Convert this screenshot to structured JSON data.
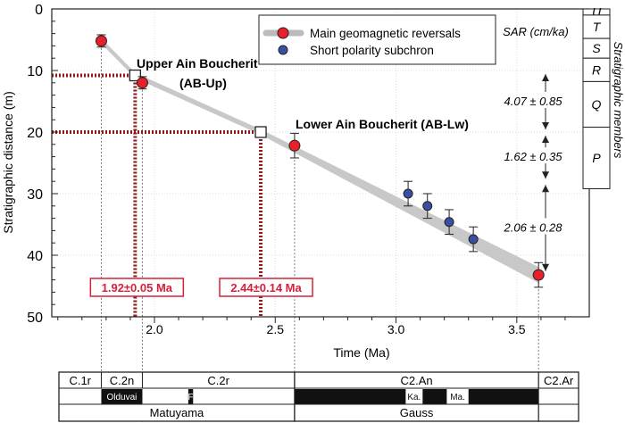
{
  "chart_data": {
    "type": "scatter",
    "xlabel": "Time (Ma)",
    "ylabel": "Stratigraphic distance (m)",
    "xlim": [
      1.575,
      3.8
    ],
    "ylim": [
      0,
      50
    ],
    "y_inverted": true,
    "xticks": [
      "2.0",
      "2.5",
      "3.0",
      "3.5"
    ],
    "xtick_values": [
      2.0,
      2.5,
      3.0,
      3.5
    ],
    "yticks": [
      "0",
      "10",
      "20",
      "30",
      "40",
      "50"
    ],
    "ytick_values": [
      0,
      10,
      20,
      30,
      40,
      50
    ],
    "grid": true,
    "legend": {
      "position": "top-right",
      "entries": [
        "Main geomagnetic reversals",
        "Short polarity subchron"
      ]
    },
    "series": [
      {
        "name": "Main geomagnetic reversals",
        "color": "#e8202a",
        "points": [
          {
            "x": 1.78,
            "y": 5.2,
            "err": 1
          },
          {
            "x": 1.95,
            "y": 12,
            "err": 1
          },
          {
            "x": 2.58,
            "y": 22.2,
            "err": 2
          },
          {
            "x": 3.59,
            "y": 43.2,
            "err": 2
          }
        ]
      },
      {
        "name": "Short polarity subchron",
        "color": "#3a4fa0",
        "points": [
          {
            "x": 3.05,
            "y": 30,
            "err": 2
          },
          {
            "x": 3.13,
            "y": 32,
            "err": 2
          },
          {
            "x": 3.22,
            "y": 34.6,
            "err": 2
          },
          {
            "x": 3.32,
            "y": 37.4,
            "err": 2
          }
        ]
      }
    ],
    "age_model_line": [
      {
        "x": 1.78,
        "y": 5.2
      },
      {
        "x": 1.92,
        "y": 10.8
      },
      {
        "x": 2.44,
        "y": 20
      },
      {
        "x": 3.59,
        "y": 43.2
      }
    ],
    "sites": [
      {
        "name": "Upper Ain Boucherit",
        "abbr": "(AB-Up)",
        "x": 1.92,
        "y": 10.8,
        "age_label": "1.92±0.05 Ma"
      },
      {
        "name": "Lower Ain Boucherit (AB-Lw)",
        "x": 2.44,
        "y": 20,
        "age_label": "2.44±0.14 Ma"
      }
    ],
    "sar": {
      "title": "SAR (cm/ka)",
      "values": [
        {
          "label": "4.07 ± 0.85",
          "from": 10,
          "to": 20
        },
        {
          "label": "1.62 ± 0.35",
          "from": 20,
          "to": 28
        },
        {
          "label": "2.06 ± 0.28",
          "from": 28,
          "to": 43
        }
      ]
    },
    "members": {
      "title": "Stratigraphic members",
      "items": [
        {
          "label": "U",
          "from": 0,
          "to": 1
        },
        {
          "label": "T",
          "from": 1,
          "to": 4.8
        },
        {
          "label": "S",
          "from": 4.8,
          "to": 8
        },
        {
          "label": "R",
          "from": 8,
          "to": 11.8
        },
        {
          "label": "Q",
          "from": 11.8,
          "to": 19.2
        },
        {
          "label": "P",
          "from": 19.2,
          "to": 29.2
        }
      ]
    },
    "timescale": {
      "chrons": [
        {
          "label": "C.1r",
          "from": 1.575,
          "to": 1.78
        },
        {
          "label": "C.2n",
          "from": 1.78,
          "to": 1.95
        },
        {
          "label": "C.2r",
          "from": 1.95,
          "to": 2.58
        },
        {
          "label": "C2.An",
          "from": 2.58,
          "to": 3.59
        },
        {
          "label": "C2.Ar",
          "from": 3.59,
          "to": 3.78
        }
      ],
      "subchrons": [
        {
          "label": "Olduvai",
          "from": 1.78,
          "to": 1.95,
          "normal": true
        },
        {
          "label": "F",
          "from": 2.14,
          "to": 2.16,
          "normal": true
        },
        {
          "label": "",
          "from": 2.58,
          "to": 3.59,
          "normal": true
        },
        {
          "label": "Ka.",
          "from": 3.04,
          "to": 3.11,
          "normal": false
        },
        {
          "label": "Ma.",
          "from": 3.21,
          "to": 3.3,
          "normal": false
        }
      ],
      "epochs": [
        {
          "label": "Matuyama",
          "from": 1.575,
          "to": 2.58
        },
        {
          "label": "Gauss",
          "from": 2.58,
          "to": 3.59
        },
        {
          "label": "",
          "from": 3.59,
          "to": 3.78
        }
      ]
    }
  }
}
